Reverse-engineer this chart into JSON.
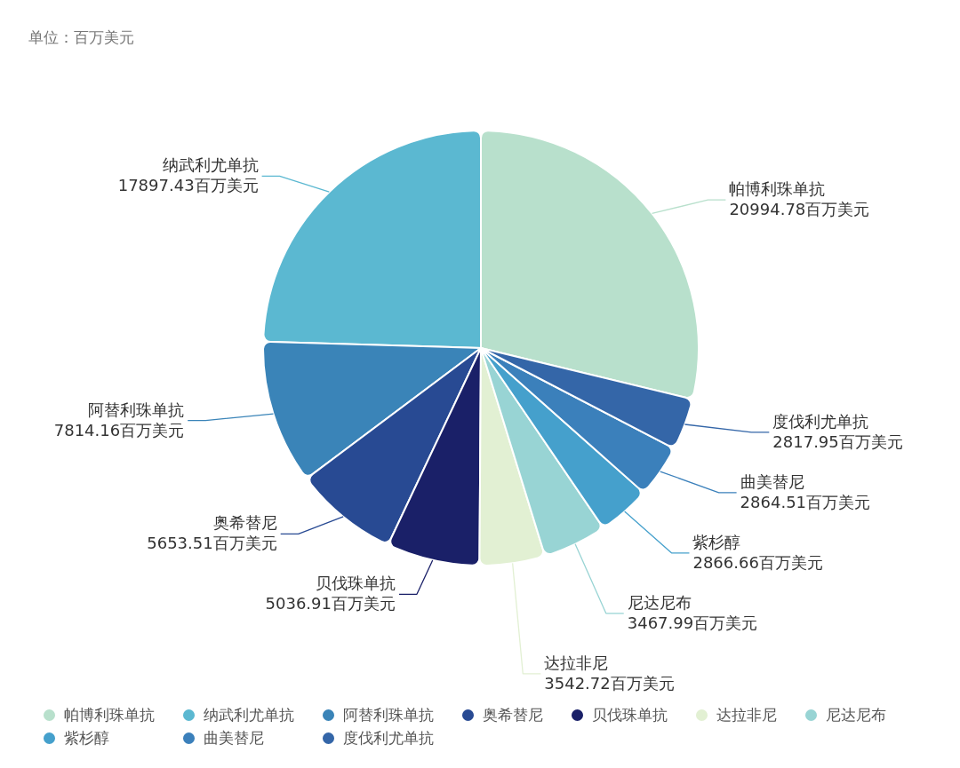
{
  "chart_data": {
    "type": "pie",
    "categories": [
      "帕博利珠单抗",
      "纳武利尤单抗",
      "阿替利珠单抗",
      "奥希替尼",
      "贝伐珠单抗",
      "达拉非尼",
      "尼达尼布",
      "紫杉醇",
      "曲美替尼",
      "度伐利尤单抗"
    ],
    "values": [
      20994.78,
      17897.43,
      7814.16,
      5653.51,
      5036.91,
      3542.72,
      3467.99,
      2866.66,
      2864.51,
      2817.95
    ],
    "colors": [
      "#b8e0cc",
      "#5bb8d1",
      "#3a84b8",
      "#284a93",
      "#1a2068",
      "#e2f0d3",
      "#98d4d4",
      "#45a0cc",
      "#3b80bb",
      "#3466a8"
    ],
    "value_labels": [
      "20994.78百万美元",
      "17897.43百万美元",
      "7814.16百万美元",
      "5653.51百万美元",
      "5036.91百万美元",
      "3542.72百万美元",
      "3467.99百万美元",
      "2866.66百万美元",
      "2864.51百万美元",
      "2817.95百万美元"
    ],
    "annotations": [
      "单位：百万美元"
    ],
    "legend": "bottom"
  }
}
